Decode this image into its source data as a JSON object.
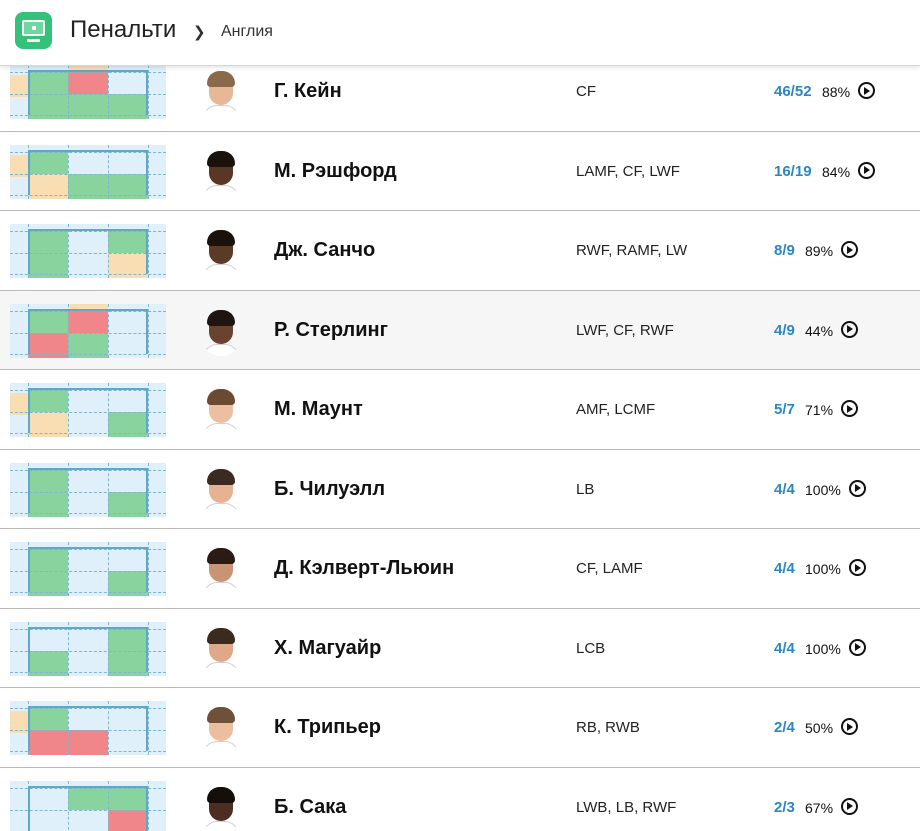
{
  "header": {
    "title": "Пенальти",
    "breadcrumb": "Англия",
    "app_icon": "football-goal-icon"
  },
  "colors": {
    "cell_base": "#dff0fb",
    "cell_scored": "#89d39f",
    "cell_missed": "#f0868a",
    "cell_wide": "#f9ddb3",
    "frame": "#5fa8c7",
    "score_text": "#2a86c5"
  },
  "players": [
    {
      "name": "Г. Кейн",
      "positions": "CF",
      "score": "46/52",
      "pct": "88%",
      "skin": "#e8b896",
      "hair": "#8a6a4a",
      "grid": {
        "top": [
          "",
          "wide",
          ""
        ],
        "left_low": "wide",
        "r1": [
          "scored",
          "missed",
          "base"
        ],
        "r2": [
          "scored",
          "scored",
          "scored"
        ]
      }
    },
    {
      "name": "М. Рэшфорд",
      "positions": "LAMF, CF, LWF",
      "score": "16/19",
      "pct": "84%",
      "skin": "#5a3626",
      "hair": "#1c120c",
      "grid": {
        "top": [
          "",
          "",
          ""
        ],
        "left_low": "wide",
        "r1": [
          "scored",
          "base",
          "base"
        ],
        "r2": [
          "wide",
          "scored",
          "scored"
        ]
      }
    },
    {
      "name": "Дж. Санчо",
      "positions": "RWF, RAMF, LW",
      "score": "8/9",
      "pct": "89%",
      "skin": "#5b3a28",
      "hair": "#1a110b",
      "grid": {
        "top": [
          "",
          "",
          ""
        ],
        "left_low": "",
        "r1": [
          "scored",
          "base",
          "scored"
        ],
        "r2": [
          "scored",
          "base",
          "wide"
        ]
      }
    },
    {
      "name": "Р. Стерлинг",
      "positions": "LWF, CF, RWF",
      "score": "4/9",
      "pct": "44%",
      "skin": "#6a4330",
      "hair": "#1f1510",
      "grid": {
        "top": [
          "",
          "wide",
          ""
        ],
        "left_low": "",
        "r1": [
          "scored",
          "missed",
          "base"
        ],
        "r2": [
          "missed",
          "scored",
          "base"
        ]
      }
    },
    {
      "name": "М. Маунт",
      "positions": "AMF, LCMF",
      "score": "5/7",
      "pct": "71%",
      "skin": "#ebbf9f",
      "hair": "#6b4a32",
      "grid": {
        "top": [
          "",
          "",
          ""
        ],
        "left_low": "wide",
        "r1": [
          "scored",
          "base",
          "base"
        ],
        "r2": [
          "wide",
          "base",
          "scored"
        ]
      }
    },
    {
      "name": "Б. Чилуэлл",
      "positions": "LB",
      "score": "4/4",
      "pct": "100%",
      "skin": "#e6b293",
      "hair": "#3a2a20",
      "grid": {
        "top": [
          "",
          "",
          ""
        ],
        "left_low": "",
        "r1": [
          "scored",
          "base",
          "base"
        ],
        "r2": [
          "scored",
          "base",
          "scored"
        ]
      }
    },
    {
      "name": "Д. Кэлверт-Льюин",
      "positions": "CF, LAMF",
      "score": "4/4",
      "pct": "100%",
      "skin": "#c99474",
      "hair": "#2a1c14",
      "grid": {
        "top": [
          "",
          "",
          ""
        ],
        "left_low": "",
        "r1": [
          "scored",
          "base",
          "base"
        ],
        "r2": [
          "scored",
          "base",
          "scored"
        ]
      }
    },
    {
      "name": "Х. Магуайр",
      "positions": "LCB",
      "score": "4/4",
      "pct": "100%",
      "skin": "#dfa888",
      "hair": "#3b2a1e",
      "grid": {
        "top": [
          "",
          "",
          ""
        ],
        "left_low": "",
        "r1": [
          "base",
          "base",
          "scored"
        ],
        "r2": [
          "scored",
          "base",
          "scored"
        ]
      }
    },
    {
      "name": "К. Трипьер",
      "positions": "RB, RWB",
      "score": "2/4",
      "pct": "50%",
      "skin": "#ecbe9e",
      "hair": "#6e5138",
      "grid": {
        "top": [
          "",
          "",
          ""
        ],
        "left_low": "wide",
        "r1": [
          "scored",
          "base",
          "base"
        ],
        "r2": [
          "missed",
          "missed",
          "base"
        ]
      }
    },
    {
      "name": "Б. Сака",
      "positions": "LWB, LB, RWF",
      "score": "2/3",
      "pct": "67%",
      "skin": "#4b2e21",
      "hair": "#160e09",
      "grid": {
        "top": [
          "",
          "",
          ""
        ],
        "left_low": "",
        "r1": [
          "base",
          "scored",
          "scored"
        ],
        "r2": [
          "base",
          "base",
          "missed"
        ]
      }
    }
  ]
}
